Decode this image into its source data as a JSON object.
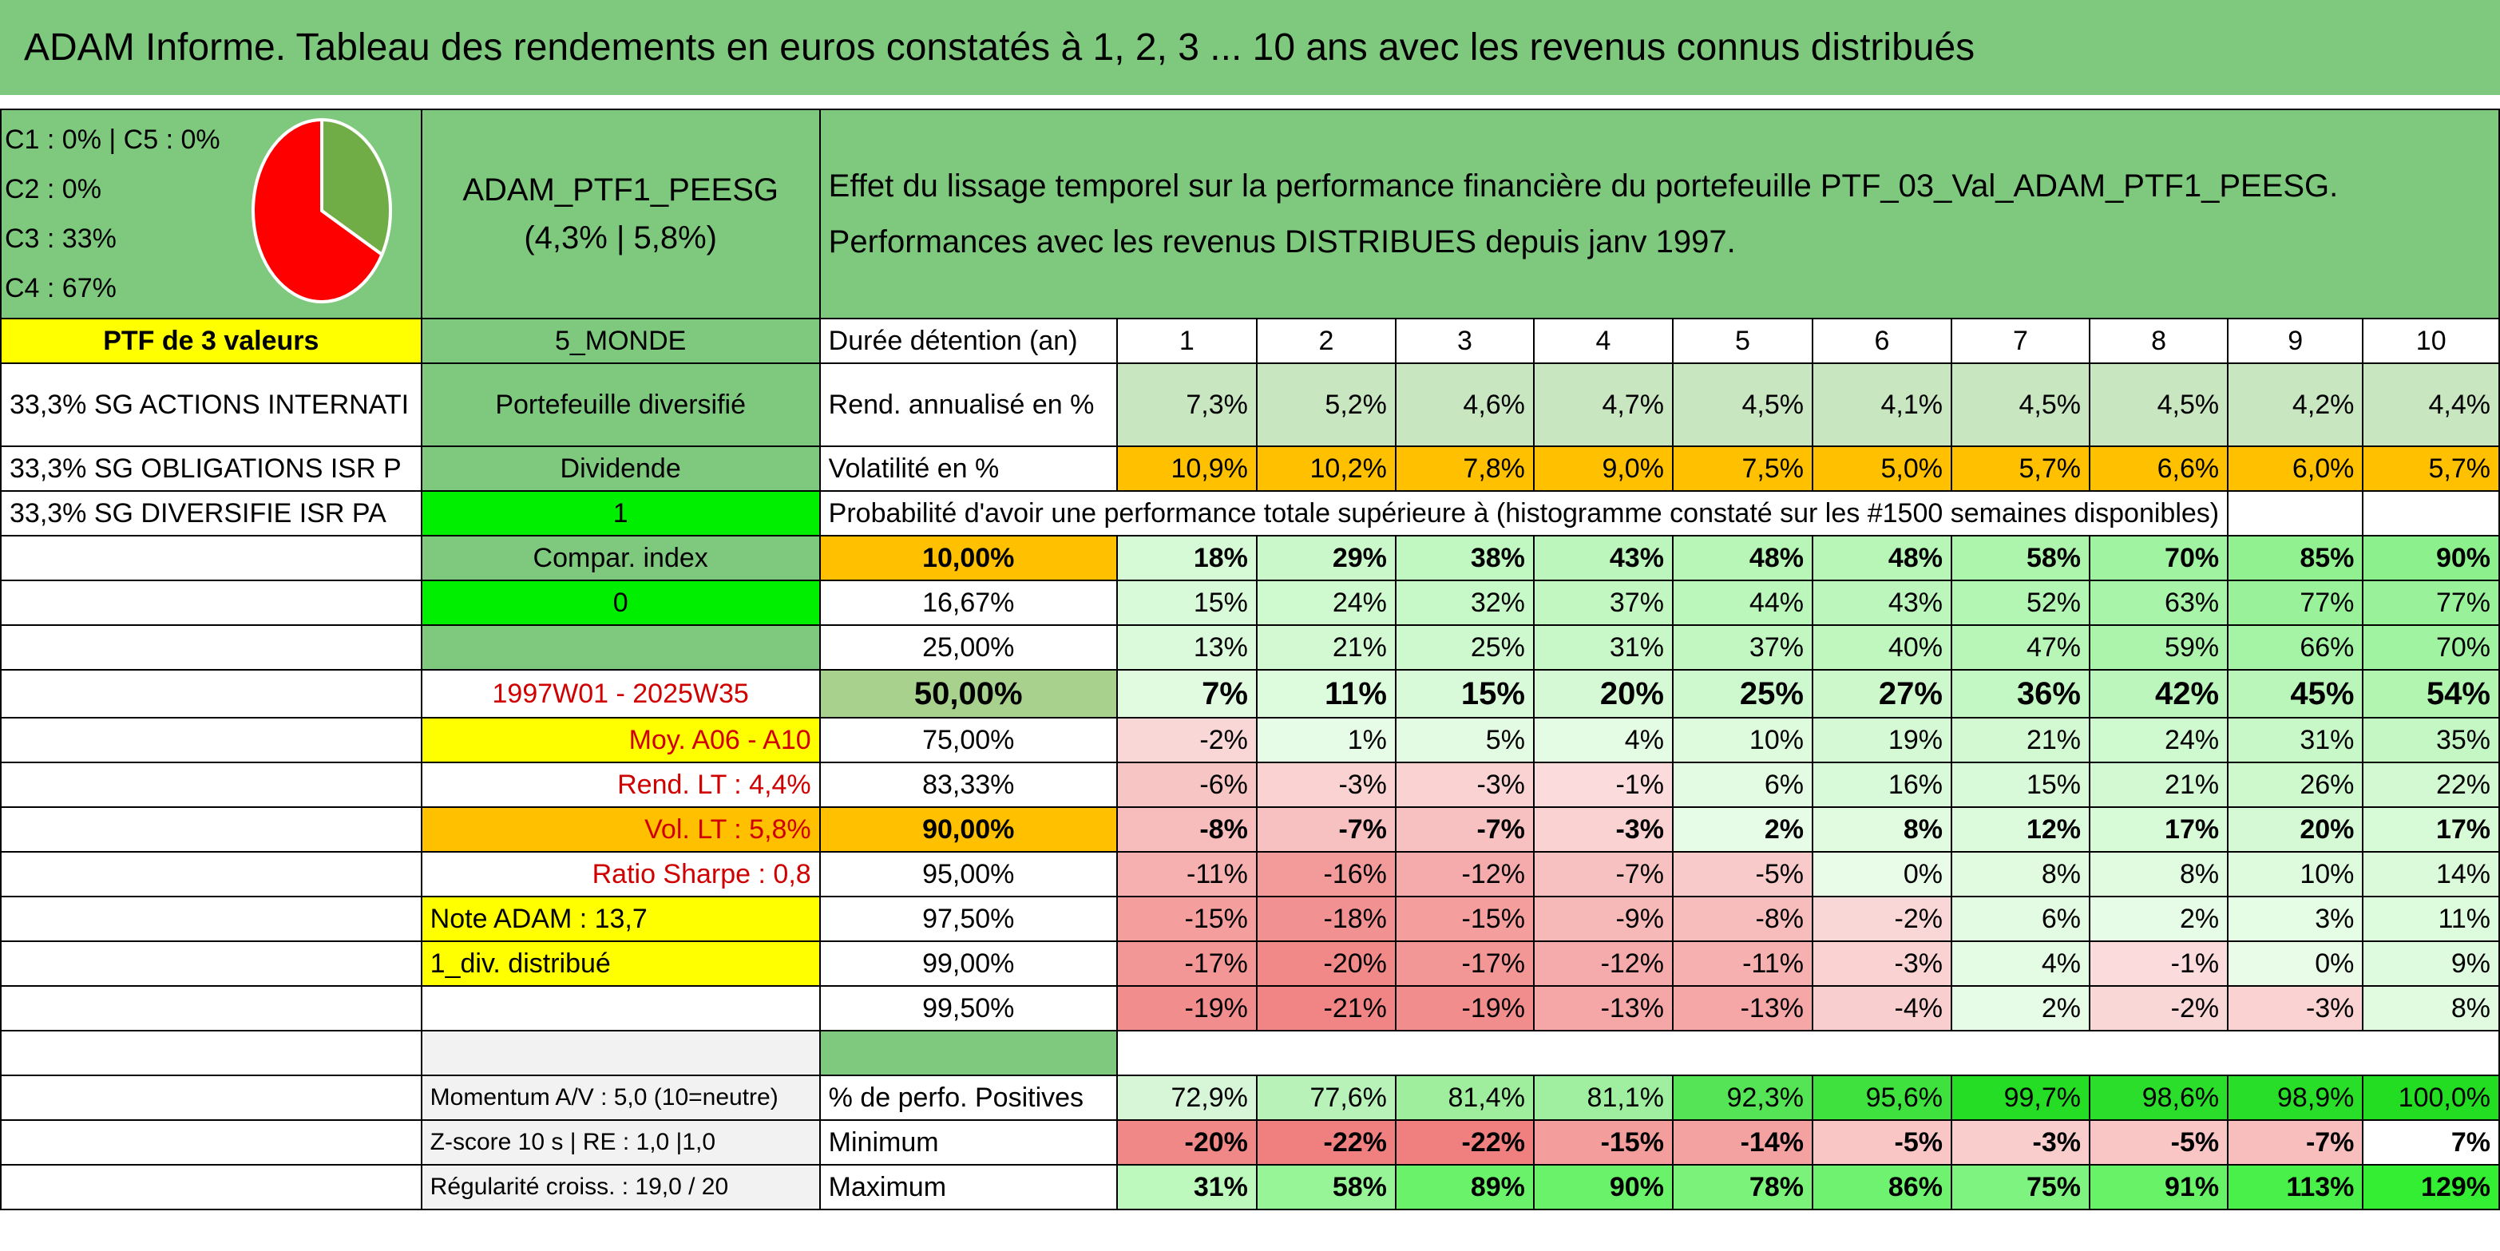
{
  "title": "ADAM Informe. Tableau des rendements en euros constatés à 1, 2, 3 ... 10 ans avec les revenus connus distribués",
  "allocation": {
    "lines": [
      "C1 : 0% | C5 : 0%",
      "C2 : 0%",
      "C3 : 33%",
      "C4 : 67%"
    ],
    "pie": [
      {
        "label": "C3",
        "value": 33,
        "color": "#70ad47"
      },
      {
        "label": "C4",
        "value": 67,
        "color": "#ff0000"
      }
    ]
  },
  "portfolio": {
    "name": "ADAM_PTF1_PEESG",
    "subtitle": "(4,3% | 5,8%)"
  },
  "headline": "Effet du lissage temporel sur la performance financière du portefeuille PTF_03_Val_ADAM_PTF1_PEESG. Performances avec les revenus DISTRIBUES depuis janv 1997.",
  "left_col": [
    "PTF de 3 valeurs",
    "33,3% SG ACTIONS INTERNATI",
    "33,3% SG OBLIGATIONS ISR P",
    "33,3% SG DIVERSIFIE ISR PA"
  ],
  "mid_col": {
    "zone": "5_MONDE",
    "type": "Portefeuille diversifié",
    "dividende_label": "Dividende",
    "dividende_value": "1",
    "compar_label": "Compar. index",
    "compar_value": "0",
    "period": "1997W01 - 2025W35",
    "moy": "Moy. A06 - A10",
    "rend_lt": "Rend. LT : 4,4%",
    "vol_lt": "Vol. LT : 5,8%",
    "sharpe": "Ratio Sharpe : 0,8",
    "note": "Note ADAM : 13,7",
    "div": "1_div. distribué",
    "momentum": "Momentum A/V : 5,0 (10=neutre)",
    "zscore": "Z-score 10 s | RE : 1,0 |1,0",
    "regularite": "Régularité croiss. : 19,0 / 20"
  },
  "duration_label": "Durée détention (an)",
  "years": [
    "1",
    "2",
    "3",
    "4",
    "5",
    "6",
    "7",
    "8",
    "9",
    "10"
  ],
  "rend_label": "Rend. annualisé en %",
  "rend": [
    "7,3%",
    "5,2%",
    "4,6%",
    "4,7%",
    "4,5%",
    "4,1%",
    "4,5%",
    "4,5%",
    "4,2%",
    "4,4%"
  ],
  "vol_label": "Volatilité en %",
  "vol": [
    "10,9%",
    "10,2%",
    "7,8%",
    "9,0%",
    "7,5%",
    "5,0%",
    "5,7%",
    "6,6%",
    "6,0%",
    "5,7%"
  ],
  "prob_label": "Probabilité d'avoir une performance totale supérieure à (histogramme constaté sur les #1500 semaines disponibles)",
  "prob_rows": [
    {
      "level": "10,00%",
      "values": [
        "18%",
        "29%",
        "38%",
        "43%",
        "48%",
        "48%",
        "58%",
        "70%",
        "85%",
        "90%"
      ],
      "bold": true,
      "levelBg": "#ffc000"
    },
    {
      "level": "16,67%",
      "values": [
        "15%",
        "24%",
        "32%",
        "37%",
        "44%",
        "43%",
        "52%",
        "63%",
        "77%",
        "77%"
      ],
      "bold": false
    },
    {
      "level": "25,00%",
      "values": [
        "13%",
        "21%",
        "25%",
        "31%",
        "37%",
        "40%",
        "47%",
        "59%",
        "66%",
        "70%"
      ],
      "bold": false
    },
    {
      "level": "50,00%",
      "values": [
        "7%",
        "11%",
        "15%",
        "20%",
        "25%",
        "27%",
        "36%",
        "42%",
        "45%",
        "54%"
      ],
      "bold": true,
      "big": true,
      "levelBg": "#a9d18e"
    },
    {
      "level": "75,00%",
      "values": [
        "-2%",
        "1%",
        "5%",
        "4%",
        "10%",
        "19%",
        "21%",
        "24%",
        "31%",
        "35%"
      ],
      "bold": false
    },
    {
      "level": "83,33%",
      "values": [
        "-6%",
        "-3%",
        "-3%",
        "-1%",
        "6%",
        "16%",
        "15%",
        "21%",
        "26%",
        "22%"
      ],
      "bold": false
    },
    {
      "level": "90,00%",
      "values": [
        "-8%",
        "-7%",
        "-7%",
        "-3%",
        "2%",
        "8%",
        "12%",
        "17%",
        "20%",
        "17%"
      ],
      "bold": true,
      "levelBg": "#ffc000"
    },
    {
      "level": "95,00%",
      "values": [
        "-11%",
        "-16%",
        "-12%",
        "-7%",
        "-5%",
        "0%",
        "8%",
        "8%",
        "10%",
        "14%"
      ],
      "bold": false
    },
    {
      "level": "97,50%",
      "values": [
        "-15%",
        "-18%",
        "-15%",
        "-9%",
        "-8%",
        "-2%",
        "6%",
        "2%",
        "3%",
        "11%"
      ],
      "bold": false
    },
    {
      "level": "99,00%",
      "values": [
        "-17%",
        "-20%",
        "-17%",
        "-12%",
        "-11%",
        "-3%",
        "4%",
        "-1%",
        "0%",
        "9%"
      ],
      "bold": false
    },
    {
      "level": "99,50%",
      "values": [
        "-19%",
        "-21%",
        "-19%",
        "-13%",
        "-13%",
        "-4%",
        "2%",
        "-2%",
        "-3%",
        "8%"
      ],
      "bold": false
    }
  ],
  "pos_label": "% de perfo. Positives",
  "pos": [
    "72,9%",
    "77,6%",
    "81,4%",
    "81,1%",
    "92,3%",
    "95,6%",
    "99,7%",
    "98,6%",
    "98,9%",
    "100,0%"
  ],
  "min_label": "Minimum",
  "min": [
    "-20%",
    "-22%",
    "-22%",
    "-15%",
    "-14%",
    "-5%",
    "-3%",
    "-5%",
    "-7%",
    "7%"
  ],
  "max_label": "Maximum",
  "max": [
    "31%",
    "58%",
    "89%",
    "90%",
    "78%",
    "86%",
    "75%",
    "91%",
    "113%",
    "129%"
  ]
}
